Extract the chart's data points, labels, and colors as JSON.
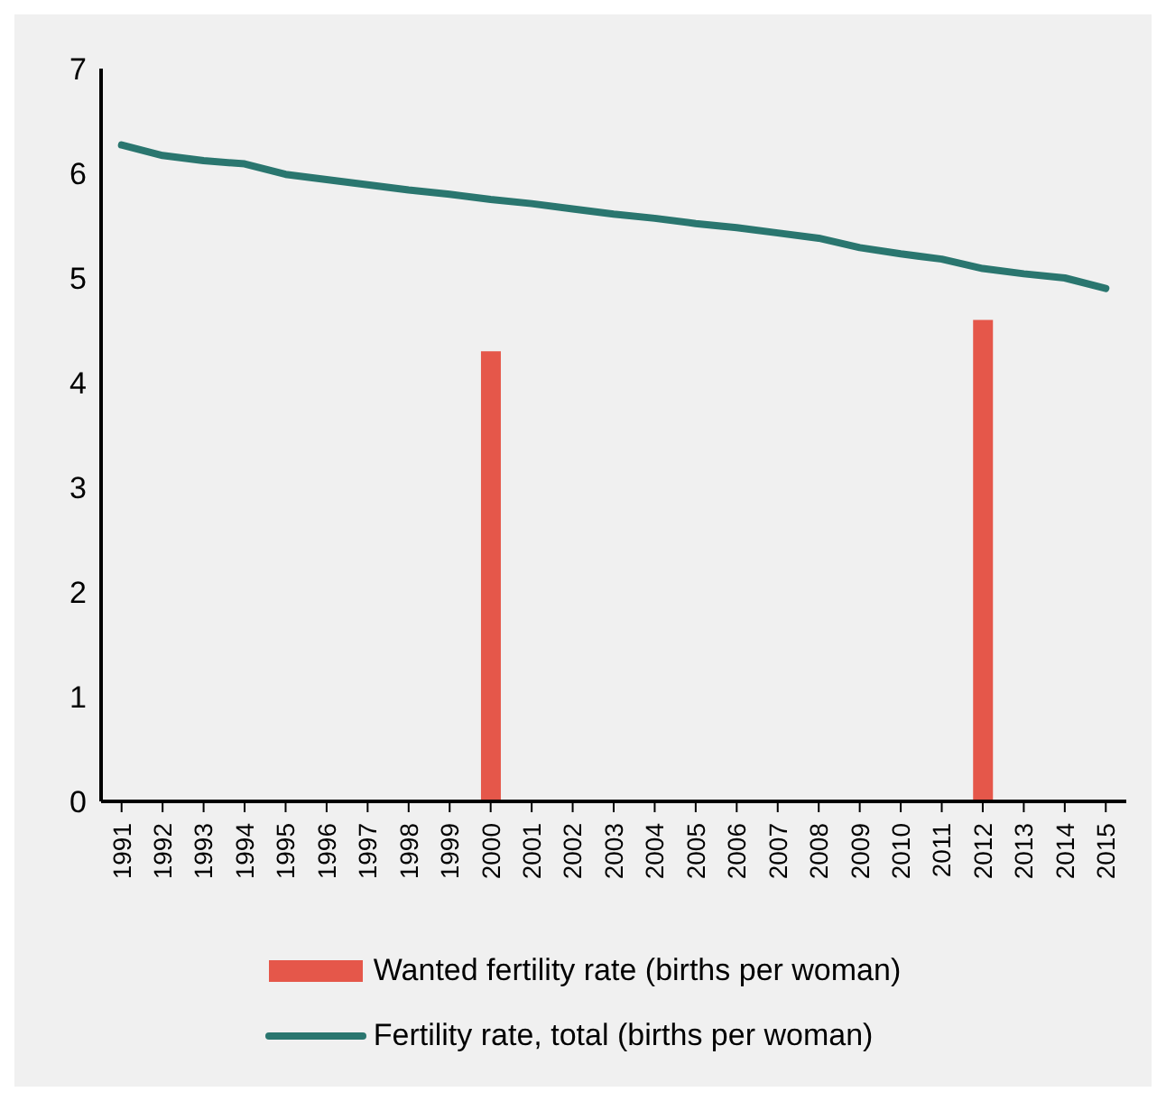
{
  "chart_data": {
    "type": "line",
    "categories": [
      "1991",
      "1992",
      "1993",
      "1994",
      "1995",
      "1996",
      "1997",
      "1998",
      "1999",
      "2000",
      "2001",
      "2002",
      "2003",
      "2004",
      "2005",
      "2006",
      "2007",
      "2008",
      "2009",
      "2010",
      "2011",
      "2012",
      "2013",
      "2014",
      "2015"
    ],
    "series": [
      {
        "name": "Wanted fertility rate (births per woman)",
        "type": "bar",
        "color": "#e5574a",
        "values": [
          null,
          null,
          null,
          null,
          null,
          null,
          null,
          null,
          null,
          4.3,
          null,
          null,
          null,
          null,
          null,
          null,
          null,
          null,
          null,
          null,
          null,
          4.6,
          null,
          null,
          null
        ]
      },
      {
        "name": "Fertility rate, total (births per woman)",
        "color": "#2a766f",
        "values": [
          6.27,
          6.17,
          6.12,
          6.09,
          5.99,
          5.94,
          5.89,
          5.84,
          5.8,
          5.75,
          5.71,
          5.66,
          5.61,
          5.57,
          5.52,
          5.48,
          5.43,
          5.38,
          5.29,
          5.23,
          5.18,
          5.09,
          5.04,
          5.0,
          4.9
        ]
      }
    ],
    "ylim": [
      0,
      7
    ],
    "yticks": [
      0,
      1,
      2,
      3,
      4,
      5,
      6,
      7
    ],
    "grid": false,
    "legend": "bottom",
    "marker": "none"
  }
}
